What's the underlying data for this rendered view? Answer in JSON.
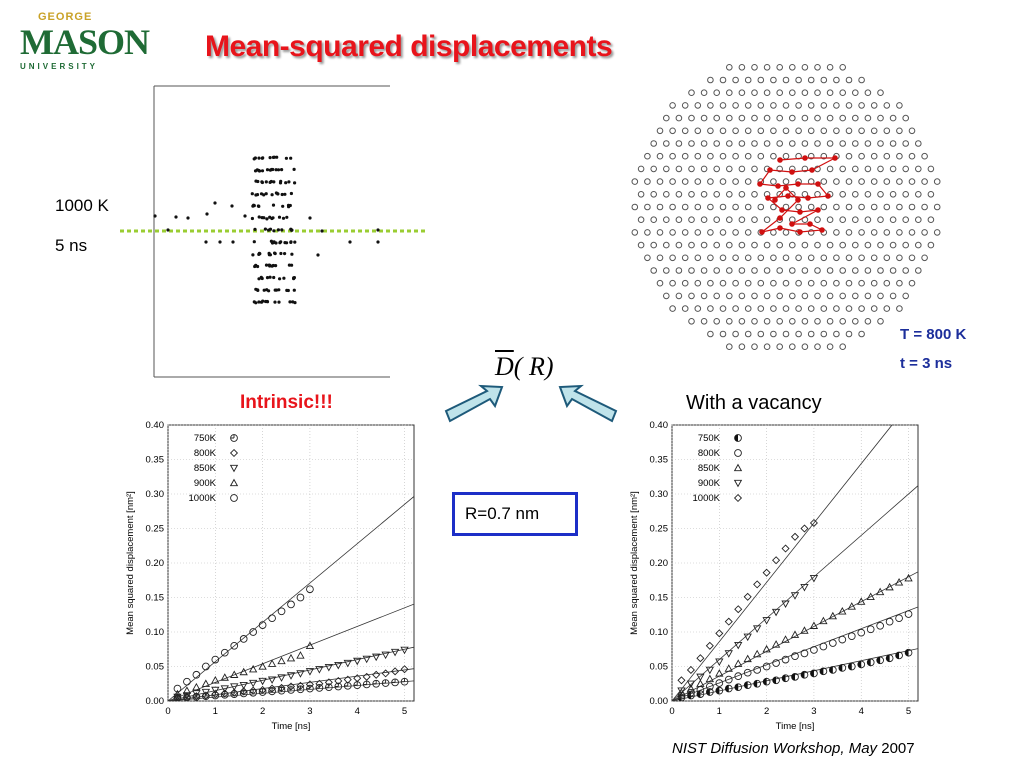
{
  "logo": {
    "top": "GEORGE",
    "main": "MASON",
    "bottom": "UNIVERSITY"
  },
  "title": "Mean-squared displacements",
  "labels": {
    "temperature": "1000 K",
    "duration": "5 ns",
    "lattice_temperature": "T = 800 K",
    "lattice_time": "t = 3 ns",
    "intrinsic": "Intrinsic!!!",
    "vacancy": "With a vacancy",
    "radius": "R=0.7 nm",
    "formula_d": "D",
    "formula_rest": "( R)"
  },
  "footer": {
    "italic": "NIST Diffusion Workshop, May",
    "year": " 2007"
  },
  "colors": {
    "title": "#e8141b",
    "accent_blue": "#1c2ec7",
    "arrow_fill": "#bfe3ea",
    "dash_line": "#9acd32",
    "trajectory": "#d01010",
    "logo_green": "#1f6b35"
  },
  "chart_data": [
    {
      "type": "scatter",
      "name_key": "intrinsic",
      "xlabel": "Time [ns]",
      "ylabel": "Mean squared displacement [nm²]",
      "xlim": [
        0,
        5.2
      ],
      "ylim": [
        0,
        0.4
      ],
      "xticks": [
        0,
        1,
        2,
        3,
        4,
        5
      ],
      "yticks": [
        0.0,
        0.05,
        0.1,
        0.15,
        0.2,
        0.25,
        0.3,
        0.35,
        0.4
      ],
      "legend": "top-left",
      "series": [
        {
          "name": "750K",
          "marker": "circle-quarter",
          "x": [
            0.2,
            0.4,
            0.6,
            0.8,
            1.0,
            1.2,
            1.4,
            1.6,
            1.8,
            2.0,
            2.2,
            2.4,
            2.6,
            2.8,
            3.0,
            3.2,
            3.4,
            3.6,
            3.8,
            4.0,
            4.2,
            4.4,
            4.6,
            4.8,
            5.0
          ],
          "values": [
            0.004,
            0.005,
            0.006,
            0.007,
            0.008,
            0.009,
            0.01,
            0.011,
            0.012,
            0.013,
            0.014,
            0.015,
            0.016,
            0.017,
            0.018,
            0.019,
            0.02,
            0.021,
            0.022,
            0.023,
            0.024,
            0.025,
            0.026,
            0.027,
            0.028
          ],
          "fit_end": 0.028
        },
        {
          "name": "800K",
          "marker": "diamond",
          "x": [
            0.2,
            0.4,
            0.6,
            0.8,
            1.0,
            1.2,
            1.4,
            1.6,
            1.8,
            2.0,
            2.2,
            2.4,
            2.6,
            2.8,
            3.0,
            3.2,
            3.4,
            3.6,
            3.8,
            4.0,
            4.2,
            4.4,
            4.6,
            4.8,
            5.0
          ],
          "values": [
            0.004,
            0.005,
            0.007,
            0.008,
            0.01,
            0.011,
            0.012,
            0.014,
            0.015,
            0.016,
            0.018,
            0.019,
            0.021,
            0.022,
            0.024,
            0.025,
            0.027,
            0.029,
            0.031,
            0.033,
            0.035,
            0.038,
            0.04,
            0.043,
            0.046
          ],
          "fit_end": 0.045
        },
        {
          "name": "850K",
          "marker": "triangle-down",
          "x": [
            0.2,
            0.4,
            0.6,
            0.8,
            1.0,
            1.2,
            1.4,
            1.6,
            1.8,
            2.0,
            2.2,
            2.4,
            2.6,
            2.8,
            3.0,
            3.2,
            3.4,
            3.6,
            3.8,
            4.0,
            4.2,
            4.4,
            4.6,
            4.8,
            5.0
          ],
          "values": [
            0.006,
            0.008,
            0.011,
            0.013,
            0.016,
            0.018,
            0.021,
            0.023,
            0.026,
            0.029,
            0.031,
            0.034,
            0.037,
            0.04,
            0.043,
            0.046,
            0.049,
            0.052,
            0.055,
            0.058,
            0.061,
            0.064,
            0.067,
            0.071,
            0.074
          ],
          "fit_end": 0.075
        },
        {
          "name": "900K",
          "marker": "triangle-up",
          "x": [
            0.2,
            0.4,
            0.6,
            0.8,
            1.0,
            1.2,
            1.4,
            1.6,
            1.8,
            2.0,
            2.2,
            2.4,
            2.6,
            2.8,
            3.0
          ],
          "values": [
            0.01,
            0.015,
            0.02,
            0.025,
            0.03,
            0.034,
            0.038,
            0.042,
            0.046,
            0.05,
            0.054,
            0.058,
            0.062,
            0.066,
            0.08
          ],
          "fit_end": 0.135
        },
        {
          "name": "1000K",
          "marker": "circle",
          "x": [
            0.2,
            0.4,
            0.6,
            0.8,
            1.0,
            1.2,
            1.4,
            1.6,
            1.8,
            2.0,
            2.2,
            2.4,
            2.6,
            2.8,
            3.0
          ],
          "values": [
            0.018,
            0.028,
            0.038,
            0.05,
            0.06,
            0.07,
            0.08,
            0.09,
            0.1,
            0.11,
            0.12,
            0.13,
            0.14,
            0.15,
            0.162
          ],
          "fit_end": 0.285
        }
      ]
    },
    {
      "type": "scatter",
      "name_key": "vacancy",
      "xlabel": "Time [ns]",
      "ylabel": "Mean squared displacement [nm²]",
      "xlim": [
        0,
        5.2
      ],
      "ylim": [
        0,
        0.4
      ],
      "xticks": [
        0,
        1,
        2,
        3,
        4,
        5
      ],
      "yticks": [
        0.0,
        0.05,
        0.1,
        0.15,
        0.2,
        0.25,
        0.3,
        0.35,
        0.4
      ],
      "legend": "top-left",
      "series": [
        {
          "name": "750K",
          "marker": "circle-half",
          "x": [
            0.2,
            0.4,
            0.6,
            0.8,
            1.0,
            1.2,
            1.4,
            1.6,
            1.8,
            2.0,
            2.2,
            2.4,
            2.6,
            2.8,
            3.0,
            3.2,
            3.4,
            3.6,
            3.8,
            4.0,
            4.2,
            4.4,
            4.6,
            4.8,
            5.0
          ],
          "values": [
            0.005,
            0.008,
            0.01,
            0.013,
            0.015,
            0.018,
            0.02,
            0.023,
            0.025,
            0.028,
            0.03,
            0.033,
            0.035,
            0.038,
            0.04,
            0.043,
            0.045,
            0.048,
            0.05,
            0.053,
            0.056,
            0.059,
            0.062,
            0.066,
            0.07
          ],
          "fit_end": 0.073
        },
        {
          "name": "800K",
          "marker": "circle",
          "x": [
            0.2,
            0.4,
            0.6,
            0.8,
            1.0,
            1.2,
            1.4,
            1.6,
            1.8,
            2.0,
            2.2,
            2.4,
            2.6,
            2.8,
            3.0,
            3.2,
            3.4,
            3.6,
            3.8,
            4.0,
            4.2,
            4.4,
            4.6,
            4.8,
            5.0
          ],
          "values": [
            0.008,
            0.012,
            0.016,
            0.021,
            0.026,
            0.031,
            0.036,
            0.041,
            0.045,
            0.05,
            0.055,
            0.06,
            0.065,
            0.069,
            0.074,
            0.079,
            0.084,
            0.089,
            0.094,
            0.099,
            0.104,
            0.109,
            0.115,
            0.12,
            0.126
          ],
          "fit_end": 0.131
        },
        {
          "name": "850K",
          "marker": "triangle-up",
          "x": [
            0.2,
            0.4,
            0.6,
            0.8,
            1.0,
            1.2,
            1.4,
            1.6,
            1.8,
            2.0,
            2.2,
            2.4,
            2.6,
            2.8,
            3.0,
            3.2,
            3.4,
            3.6,
            3.8,
            4.0,
            4.2,
            4.4,
            4.6,
            4.8,
            5.0
          ],
          "values": [
            0.012,
            0.018,
            0.025,
            0.032,
            0.04,
            0.047,
            0.054,
            0.061,
            0.068,
            0.075,
            0.082,
            0.089,
            0.096,
            0.102,
            0.109,
            0.116,
            0.123,
            0.13,
            0.137,
            0.144,
            0.151,
            0.158,
            0.165,
            0.172,
            0.178
          ],
          "fit_end": 0.18
        },
        {
          "name": "900K",
          "marker": "triangle-down",
          "x": [
            0.2,
            0.4,
            0.6,
            0.8,
            1.0,
            1.2,
            1.4,
            1.6,
            1.8,
            2.0,
            2.2,
            2.4,
            2.6,
            2.8,
            3.0
          ],
          "values": [
            0.015,
            0.025,
            0.035,
            0.045,
            0.057,
            0.069,
            0.081,
            0.093,
            0.105,
            0.117,
            0.129,
            0.141,
            0.153,
            0.165,
            0.178
          ],
          "fit_end": 0.3
        },
        {
          "name": "1000K",
          "marker": "diamond",
          "x": [
            0.2,
            0.4,
            0.6,
            0.8,
            1.0,
            1.2,
            1.4,
            1.6,
            1.8,
            2.0,
            2.2,
            2.4,
            2.6,
            2.8,
            3.0
          ],
          "values": [
            0.03,
            0.045,
            0.062,
            0.08,
            0.098,
            0.115,
            0.133,
            0.151,
            0.169,
            0.186,
            0.204,
            0.221,
            0.238,
            0.25,
            0.258
          ],
          "fit_end": 0.43
        }
      ]
    }
  ]
}
